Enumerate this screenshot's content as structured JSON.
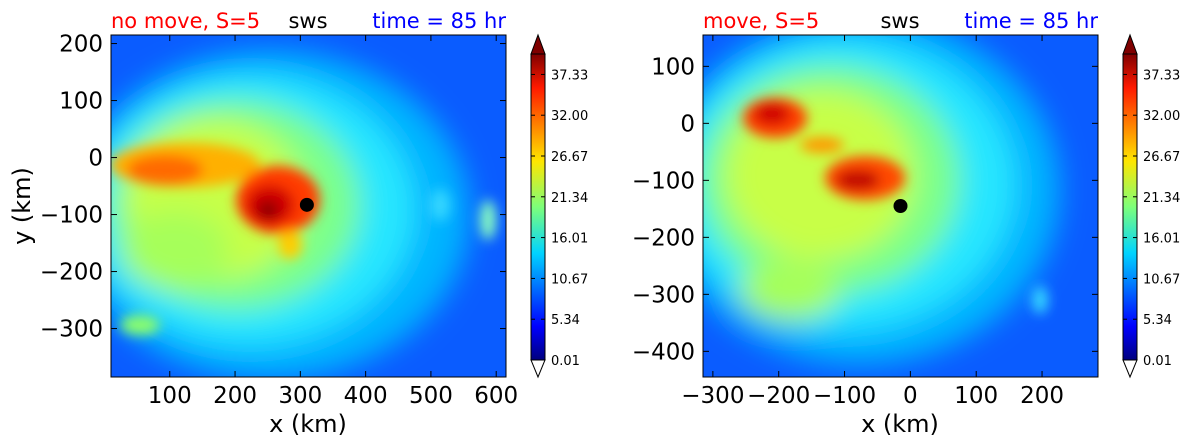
{
  "chart_data": [
    {
      "type": "heatmap",
      "title_left": "no move, S=5",
      "title_center": "sws",
      "title_right": "time = 85 hr",
      "title_colors": {
        "left": "#ff0000",
        "center": "#000000",
        "right": "#0000ff"
      },
      "xlabel": "x (km)",
      "ylabel": "y (km)",
      "xlim": [
        10,
        615
      ],
      "ylim": [
        -385,
        215
      ],
      "xticks": [
        100,
        200,
        300,
        400,
        500,
        600
      ],
      "yticks": [
        200,
        100,
        0,
        -100,
        -200,
        -300
      ],
      "marker": {
        "x": 310,
        "y": -83
      },
      "colorbar": {
        "min": 0.01,
        "max": 40,
        "ticks": [
          "37.33",
          "32.00",
          "26.67",
          "21.34",
          "16.01",
          "10.67",
          "5.34",
          "0.01"
        ]
      }
    },
    {
      "type": "heatmap",
      "title_left": "move, S=5",
      "title_center": "sws",
      "title_right": "time = 85 hr",
      "title_colors": {
        "left": "#ff0000",
        "center": "#000000",
        "right": "#0000ff"
      },
      "xlabel": "x (km)",
      "ylabel": "",
      "xlim": [
        -315,
        285
      ],
      "ylim": [
        -445,
        155
      ],
      "xticks": [
        -300,
        -200,
        -100,
        0,
        100,
        200
      ],
      "yticks": [
        100,
        0,
        -100,
        -200,
        -300,
        -400
      ],
      "marker": {
        "x": -15,
        "y": -145
      },
      "colorbar": {
        "min": 0.01,
        "max": 40,
        "ticks": [
          "37.33",
          "32.00",
          "26.67",
          "21.34",
          "16.01",
          "10.67",
          "5.34",
          "0.01"
        ]
      }
    }
  ]
}
